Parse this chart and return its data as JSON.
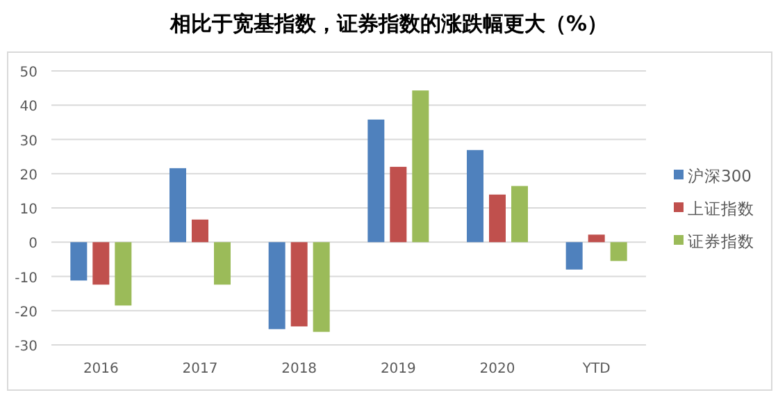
{
  "chart_data": {
    "type": "bar",
    "title": "相比于宽基指数，证券指数的涨跌幅更大（%）",
    "categories": [
      "2016",
      "2017",
      "2018",
      "2019",
      "2020",
      "YTD"
    ],
    "series": [
      {
        "name": "沪深300",
        "color": "#4f81bd",
        "values": [
          -11.2,
          21.6,
          -25.4,
          35.8,
          26.9,
          -8.0
        ]
      },
      {
        "name": "上证指数",
        "color": "#c0504d",
        "values": [
          -12.4,
          6.6,
          -24.6,
          22.0,
          13.9,
          2.2
        ]
      },
      {
        "name": "证券指数",
        "color": "#9bbb59",
        "values": [
          -18.5,
          -12.4,
          -26.2,
          44.3,
          16.4,
          -5.5
        ]
      }
    ],
    "ylim": [
      -30,
      50
    ],
    "yticks": [
      -30,
      -20,
      -10,
      0,
      10,
      20,
      30,
      40,
      50
    ],
    "grid": "y",
    "legend": "right"
  }
}
